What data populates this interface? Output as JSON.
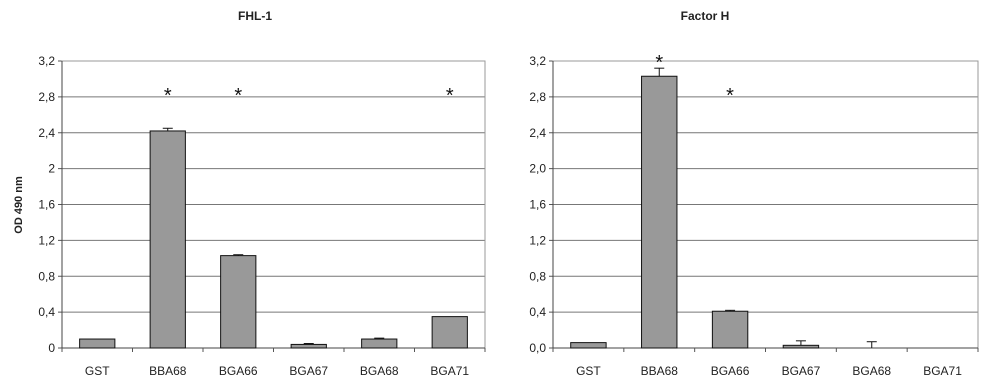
{
  "chart_data": [
    {
      "type": "bar",
      "title": "FHL-1",
      "ylabel": "OD 490 nm",
      "categories": [
        "GST",
        "BBA68",
        "BGA66",
        "BGA67",
        "BGA68",
        "BGA71"
      ],
      "category_labels": [
        "GST",
        "BBA68",
        "BGA66",
        "BGA67",
        "BGA68",
        "BGA71"
      ],
      "values": [
        0.1,
        2.42,
        1.03,
        0.04,
        0.1,
        0.35
      ],
      "errors": [
        0,
        0.03,
        0.01,
        0.01,
        0.01,
        0
      ],
      "significant": [
        false,
        true,
        true,
        false,
        false,
        true
      ],
      "significance_marker": "*",
      "ylim": [
        0,
        3.2
      ],
      "yticks": [
        0,
        0.4,
        0.8,
        1.2,
        1.6,
        2,
        2.4,
        2.8,
        3.2
      ],
      "ytick_labels": [
        "0",
        "0,4",
        "0,8",
        "1,2",
        "1,6",
        "2",
        "2,4",
        "2,8",
        "3,2"
      ],
      "grid": true,
      "bar_color": "#999999"
    },
    {
      "type": "bar",
      "title": "Factor H",
      "ylabel": "",
      "categories": [
        "GST",
        "BBA68",
        "BGA66",
        "BGA67",
        "BGA68",
        "BGA71"
      ],
      "category_labels": [
        "GST",
        "BBA68",
        "BGA66",
        "BGA67",
        "BGA68",
        "BGA71"
      ],
      "values": [
        0.06,
        3.03,
        0.41,
        0.03,
        0.0,
        0.0
      ],
      "errors": [
        0,
        0.09,
        0.01,
        0.05,
        0.07,
        0
      ],
      "significant": [
        false,
        true,
        true,
        false,
        false,
        false
      ],
      "significance_marker": "*",
      "ylim": [
        0,
        3.2
      ],
      "yticks": [
        0,
        0.4,
        0.8,
        1.2,
        1.6,
        2,
        2.4,
        2.8,
        3.2
      ],
      "ytick_labels": [
        "0,0",
        "0,4",
        "0,8",
        "1,2",
        "1,6",
        "2,0",
        "2,4",
        "2,8",
        "3,2"
      ],
      "grid": true,
      "bar_color": "#999999"
    }
  ]
}
